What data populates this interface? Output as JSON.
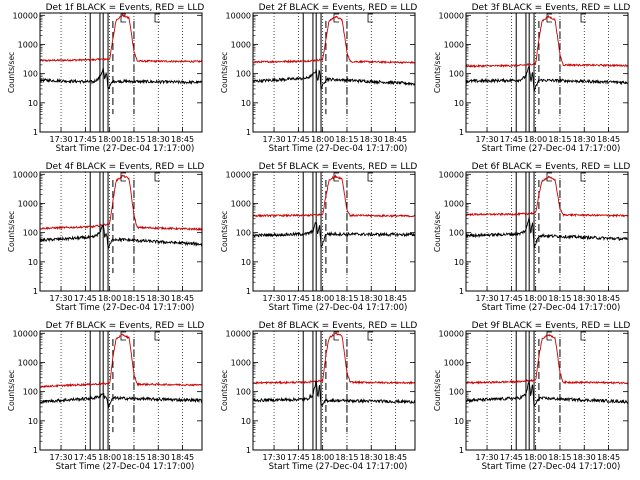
{
  "chart_data": {
    "type": "line",
    "ylabel": "Counts/sec",
    "xlabel": "Start Time (27-Dec-04 17:17:00)",
    "x_tick_labels": [
      "17:30",
      "17:45",
      "18:00",
      "18:15",
      "18:30",
      "18:45"
    ],
    "x_tick_minutes": [
      30,
      45,
      60,
      75,
      90,
      105
    ],
    "xlim_minutes": [
      17,
      117
    ],
    "y_scale": "log",
    "ylim": [
      1,
      12000
    ],
    "y_tick_labels": [
      "1",
      "10",
      "100",
      "1000",
      "10000"
    ],
    "y_tick_values": [
      1,
      10,
      100,
      1000,
      10000
    ],
    "grid": "vertical dotted",
    "series_colors": {
      "events": "#000000",
      "lld": "#cc0000"
    },
    "panels": [
      {
        "title": "Det 1f BLACK = Events, RED = LLD",
        "events_base": 55,
        "lld_base": 280,
        "peak": 10000,
        "events_series": {
          "min": [
            17,
            50,
            54,
            56,
            57,
            58,
            59,
            62,
            117
          ],
          "val": [
            60,
            52,
            75,
            150,
            60,
            110,
            30,
            55,
            50
          ]
        },
        "lld_series": {
          "min": [
            17,
            50,
            60,
            62,
            64,
            68,
            72,
            75,
            77,
            117
          ],
          "val": [
            280,
            300,
            320,
            1500,
            7000,
            10000,
            8000,
            600,
            270,
            260
          ]
        }
      },
      {
        "title": "Det 2f BLACK = Events, RED = LLD",
        "events_base": 55,
        "lld_base": 250,
        "peak": 9000,
        "events_series": {
          "min": [
            17,
            50,
            54,
            56,
            57,
            58,
            59,
            62,
            117
          ],
          "val": [
            55,
            70,
            90,
            130,
            55,
            140,
            30,
            65,
            45
          ]
        },
        "lld_series": {
          "min": [
            17,
            50,
            60,
            62,
            64,
            68,
            72,
            75,
            77,
            117
          ],
          "val": [
            250,
            270,
            300,
            1500,
            6500,
            9000,
            7000,
            550,
            260,
            240
          ]
        }
      },
      {
        "title": "Det 3f BLACK = Events, RED = LLD",
        "events_base": 55,
        "lld_base": 180,
        "peak": 9000,
        "events_series": {
          "min": [
            17,
            50,
            54,
            56,
            57,
            58,
            59,
            62,
            117
          ],
          "val": [
            55,
            60,
            80,
            180,
            50,
            120,
            25,
            60,
            50
          ]
        },
        "lld_series": {
          "min": [
            17,
            50,
            60,
            62,
            64,
            68,
            72,
            75,
            77,
            117
          ],
          "val": [
            180,
            190,
            220,
            1500,
            6500,
            9000,
            7000,
            450,
            200,
            190
          ]
        }
      },
      {
        "title": "Det 4f BLACK = Events, RED = LLD",
        "events_base": 55,
        "lld_base": 140,
        "peak": 9000,
        "events_series": {
          "min": [
            17,
            50,
            54,
            56,
            57,
            58,
            59,
            62,
            117
          ],
          "val": [
            55,
            70,
            100,
            200,
            70,
            100,
            30,
            60,
            40
          ]
        },
        "lld_series": {
          "min": [
            17,
            50,
            60,
            62,
            64,
            68,
            72,
            75,
            77,
            117
          ],
          "val": [
            140,
            160,
            200,
            1200,
            6000,
            9000,
            7000,
            400,
            150,
            130
          ]
        }
      },
      {
        "title": "Det 5f BLACK = Events, RED = LLD",
        "events_base": 90,
        "lld_base": 380,
        "peak": 8500,
        "events_series": {
          "min": [
            17,
            50,
            54,
            56,
            57,
            58,
            59,
            62,
            117
          ],
          "val": [
            80,
            90,
            110,
            250,
            80,
            200,
            30,
            90,
            85
          ]
        },
        "lld_series": {
          "min": [
            17,
            50,
            60,
            62,
            64,
            68,
            72,
            75,
            77,
            117
          ],
          "val": [
            380,
            390,
            420,
            1800,
            6500,
            8500,
            7000,
            600,
            390,
            370
          ]
        }
      },
      {
        "title": "Det 6f BLACK = Events, RED = LLD",
        "events_base": 80,
        "lld_base": 420,
        "peak": 8000,
        "events_series": {
          "min": [
            17,
            50,
            54,
            56,
            57,
            58,
            59,
            62,
            117
          ],
          "val": [
            80,
            90,
            120,
            350,
            90,
            250,
            30,
            80,
            60
          ]
        },
        "lld_series": {
          "min": [
            17,
            50,
            60,
            62,
            64,
            68,
            72,
            75,
            77,
            117
          ],
          "val": [
            420,
            430,
            470,
            2000,
            6000,
            8000,
            6500,
            650,
            410,
            380
          ]
        }
      },
      {
        "title": "Det 7f BLACK = Events, RED = LLD",
        "events_base": 60,
        "lld_base": 180,
        "peak": 9000,
        "events_series": {
          "min": [
            17,
            50,
            54,
            56,
            57,
            58,
            59,
            62,
            117
          ],
          "val": [
            45,
            60,
            70,
            90,
            60,
            70,
            30,
            60,
            50
          ]
        },
        "lld_series": {
          "min": [
            17,
            50,
            60,
            62,
            64,
            68,
            72,
            75,
            77,
            117
          ],
          "val": [
            150,
            180,
            190,
            1500,
            6500,
            9000,
            7000,
            400,
            180,
            170
          ]
        }
      },
      {
        "title": "Det 8f BLACK = Events, RED = LLD",
        "events_base": 50,
        "lld_base": 200,
        "peak": 10000,
        "events_series": {
          "min": [
            17,
            50,
            54,
            56,
            57,
            58,
            59,
            62,
            117
          ],
          "val": [
            50,
            55,
            75,
            250,
            60,
            180,
            30,
            50,
            45
          ]
        },
        "lld_series": {
          "min": [
            17,
            50,
            60,
            62,
            64,
            68,
            72,
            75,
            77,
            117
          ],
          "val": [
            200,
            210,
            240,
            1800,
            7000,
            10000,
            8000,
            450,
            210,
            200
          ]
        }
      },
      {
        "title": "Det 9f BLACK = Events, RED = LLD",
        "events_base": 50,
        "lld_base": 200,
        "peak": 9000,
        "events_series": {
          "min": [
            17,
            50,
            54,
            56,
            57,
            58,
            59,
            62,
            117
          ],
          "val": [
            50,
            60,
            80,
            250,
            60,
            200,
            30,
            60,
            45
          ]
        },
        "lld_series": {
          "min": [
            17,
            50,
            60,
            62,
            64,
            68,
            72,
            75,
            77,
            117
          ],
          "val": [
            200,
            220,
            250,
            1600,
            6500,
            9000,
            7000,
            450,
            210,
            200
          ]
        }
      }
    ],
    "markers": {
      "solid_minutes": [
        48,
        54,
        56,
        59
      ],
      "dashed_minutes": [
        62,
        75
      ],
      "bracket_minutes": [
        67,
        88
      ]
    }
  }
}
